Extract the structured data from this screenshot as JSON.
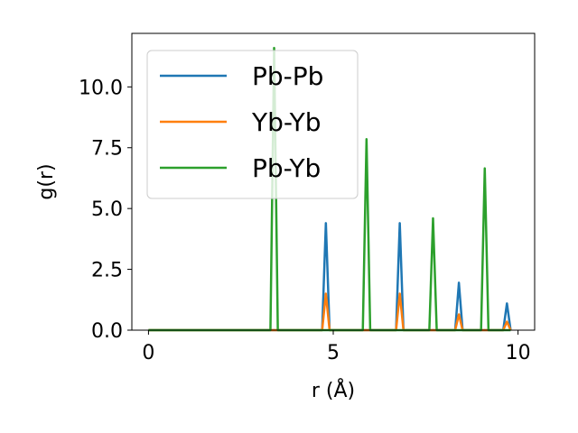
{
  "chart_data": {
    "type": "line",
    "xlabel": "r (Å)",
    "ylabel": "g(r)",
    "xlim": [
      -0.45,
      10.45
    ],
    "ylim": [
      0,
      12.2
    ],
    "xticks": [
      0,
      5,
      10
    ],
    "xtick_labels": [
      "0",
      "5",
      "10"
    ],
    "yticks": [
      0.0,
      2.5,
      5.0,
      7.5,
      10.0
    ],
    "ytick_labels": [
      "0.0",
      "2.5",
      "5.0",
      "7.5",
      "10.0"
    ],
    "grid": false,
    "legend_position": "upper-left",
    "series": [
      {
        "name": "Pb-Pb",
        "color": "#1f77b4",
        "x": [
          0,
          4.7,
          4.8,
          4.9,
          6.7,
          6.8,
          6.9,
          8.3,
          8.4,
          8.5,
          9.6,
          9.7,
          9.8
        ],
        "y": [
          0,
          0,
          4.4,
          0,
          0,
          4.4,
          0,
          0,
          1.95,
          0,
          0,
          1.1,
          0
        ]
      },
      {
        "name": "Yb-Yb",
        "color": "#ff7f0e",
        "x": [
          0,
          4.7,
          4.8,
          4.9,
          6.7,
          6.8,
          6.9,
          8.3,
          8.4,
          8.5,
          9.6,
          9.7,
          9.8
        ],
        "y": [
          0,
          0,
          1.5,
          0,
          0,
          1.5,
          0,
          0,
          0.65,
          0,
          0,
          0.35,
          0
        ]
      },
      {
        "name": "Pb-Yb",
        "color": "#2ca02c",
        "x": [
          0,
          3.3,
          3.4,
          3.5,
          5.8,
          5.9,
          6.0,
          7.6,
          7.7,
          7.8,
          9.0,
          9.1,
          9.2,
          9.8
        ],
        "y": [
          0,
          0,
          11.6,
          0,
          0,
          7.85,
          0,
          0,
          4.6,
          0,
          0,
          6.65,
          0,
          0
        ]
      }
    ]
  }
}
